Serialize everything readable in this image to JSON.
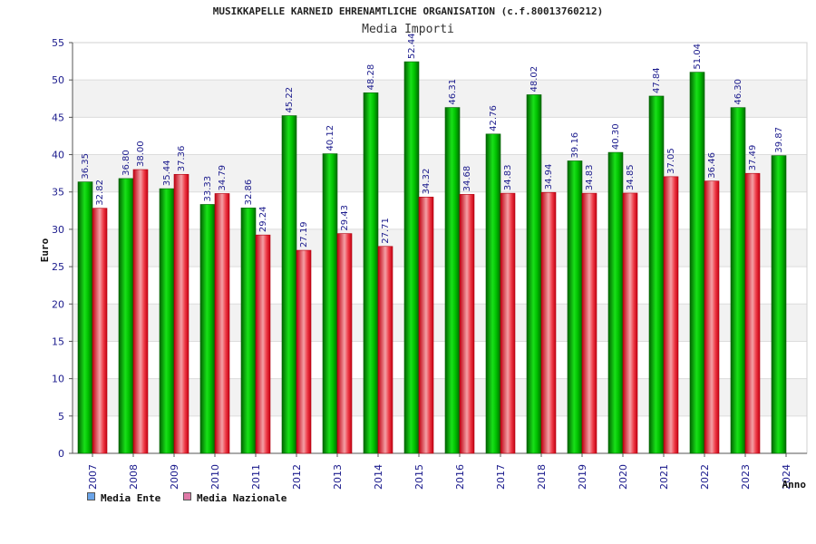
{
  "header": {
    "title": "MUSIKKAPELLE KARNEID EHRENAMTLICHE ORGANISATION (c.f.80013760212)",
    "subtitle": "Media Importi"
  },
  "legend": {
    "ente_label": "Media Ente",
    "nazionale_label": "Media Nazionale",
    "ente_color": "#6aa4e8",
    "nazionale_color": "#e07aa8"
  },
  "chart_data": {
    "type": "bar",
    "xlabel": "Anno",
    "ylabel": "Euro",
    "ylim": [
      0,
      55
    ],
    "yticks": [
      0,
      5,
      10,
      15,
      20,
      25,
      30,
      35,
      40,
      45,
      50,
      55
    ],
    "grid": true,
    "legend_position": "bottom-left",
    "categories": [
      "2007",
      "2008",
      "2009",
      "2010",
      "2011",
      "2012",
      "2013",
      "2014",
      "2015",
      "2016",
      "2017",
      "2018",
      "2019",
      "2020",
      "2021",
      "2022",
      "2023",
      "2024"
    ],
    "series": [
      {
        "name": "Media Ente",
        "color": "#00b000",
        "values": [
          36.35,
          36.8,
          35.44,
          33.33,
          32.86,
          45.22,
          40.12,
          48.28,
          52.44,
          46.31,
          42.76,
          48.02,
          39.16,
          40.3,
          47.84,
          51.04,
          46.3,
          39.87
        ],
        "labels": [
          "36.35",
          "36.80",
          "35.44",
          "33.33",
          "32.86",
          "45.22",
          "40.12",
          "48.28",
          "52.44",
          "46.31",
          "42.76",
          "48.02",
          "39.16",
          "40.30",
          "47.84",
          "51.04",
          "46.30",
          "39.87"
        ]
      },
      {
        "name": "Media Nazionale",
        "color": "#e8202e",
        "values": [
          32.82,
          38.0,
          37.36,
          34.79,
          29.24,
          27.19,
          29.43,
          27.71,
          34.32,
          34.68,
          34.83,
          34.94,
          34.83,
          34.85,
          37.05,
          36.46,
          37.49,
          null
        ],
        "labels": [
          "32.82",
          "38.00",
          "37.36",
          "34.79",
          "29.24",
          "27.19",
          "29.43",
          "27.71",
          "34.32",
          "34.68",
          "34.83",
          "34.94",
          "34.83",
          "34.85",
          "37.05",
          "36.46",
          "37.49",
          null
        ]
      }
    ]
  }
}
